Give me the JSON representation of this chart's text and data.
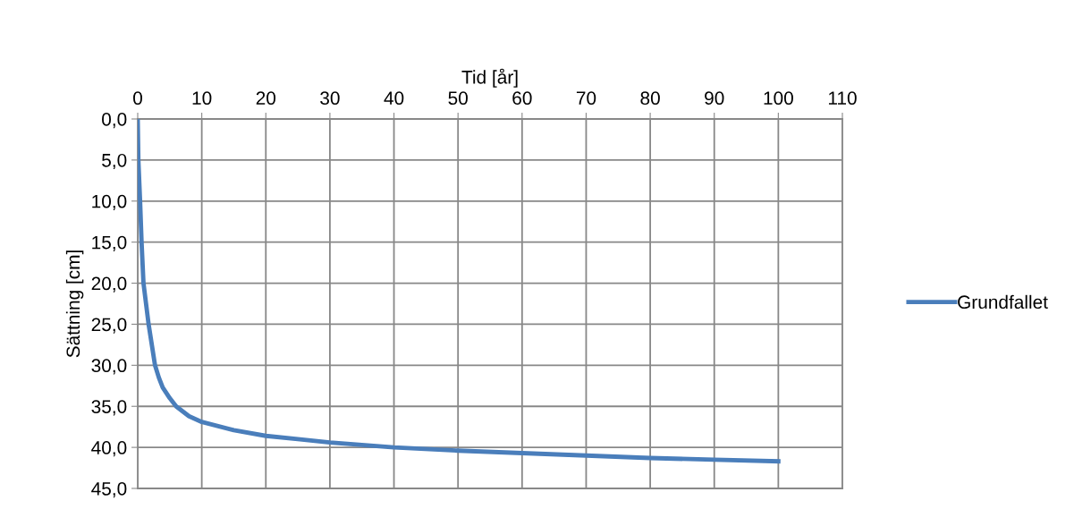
{
  "chart_data": {
    "type": "line",
    "xlabel": "Tid [år]",
    "ylabel": "Sättning [cm]",
    "series": [
      {
        "name": "Grundfallet",
        "color": "#4a7ebb",
        "x": [
          0,
          0.1,
          0.37,
          0.6,
          0.9,
          1.3,
          1.7,
          2.2,
          2.7,
          3.3,
          3.9,
          5.0,
          6.0,
          8.0,
          10,
          15,
          20,
          25,
          30,
          40,
          50,
          60,
          70,
          80,
          90,
          100
        ],
        "values": [
          0,
          5.0,
          10.0,
          15.0,
          20.0,
          22.5,
          25.0,
          27.5,
          30.0,
          31.5,
          32.7,
          34.0,
          35.0,
          36.2,
          36.9,
          37.9,
          38.6,
          39.0,
          39.4,
          40.0,
          40.4,
          40.7,
          41.0,
          41.3,
          41.5,
          41.7
        ]
      }
    ],
    "xlim": [
      0,
      110
    ],
    "xticks": [
      0,
      10,
      20,
      30,
      40,
      50,
      60,
      70,
      80,
      90,
      100,
      110
    ],
    "ylim": [
      45,
      0
    ],
    "yticks": [
      {
        "value": 0,
        "label": "0,0"
      },
      {
        "value": 5,
        "label": "5,0"
      },
      {
        "value": 10,
        "label": "10,0"
      },
      {
        "value": 15,
        "label": "15,0"
      },
      {
        "value": 20,
        "label": "20,0"
      },
      {
        "value": 25,
        "label": "25,0"
      },
      {
        "value": 30,
        "label": "30,0"
      },
      {
        "value": 35,
        "label": "35,0"
      },
      {
        "value": 40,
        "label": "40,0"
      },
      {
        "value": 45,
        "label": "45,0"
      }
    ],
    "grid": true,
    "legend": "right",
    "marker": "none",
    "line_style": "solid"
  }
}
